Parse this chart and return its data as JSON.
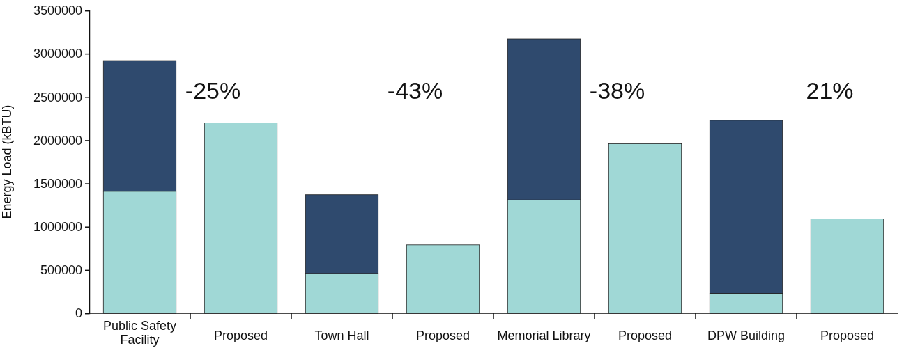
{
  "chart_data": {
    "type": "bar",
    "ylabel": "Energy Load (kBTU)",
    "categories": [
      "Public Safety Facility",
      "Proposed",
      "Town Hall",
      "Proposed",
      "Memorial Library",
      "Proposed",
      "DPW Building",
      "Proposed"
    ],
    "stacked": true,
    "series": [
      {
        "color": "#a0d8d6",
        "values": [
          1410000,
          2200000,
          460000,
          790000,
          1310000,
          1960000,
          230000,
          1090000
        ]
      },
      {
        "color": "#2f4a6e",
        "values": [
          1510000,
          null,
          910000,
          null,
          1860000,
          null,
          2000000,
          null
        ]
      }
    ],
    "ylim": [
      0,
      3500000
    ],
    "yticks": [
      0,
      500000,
      1000000,
      1500000,
      2000000,
      2500000,
      3000000,
      3500000
    ],
    "annotations": [
      "-25%",
      "-43%",
      "-38%",
      "21%"
    ]
  }
}
